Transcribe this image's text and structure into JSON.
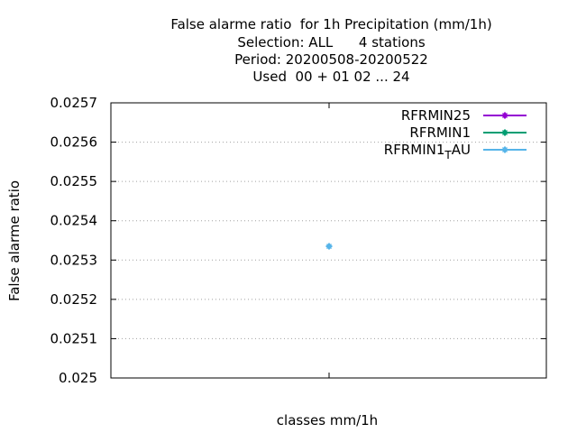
{
  "chart_data": {
    "type": "scatter",
    "title_lines": [
      "False alarme ratio  for 1h Precipitation (mm/1h)",
      "Selection: ALL      4 stations",
      "Period: 20200508-20200522",
      "Used  00 + 01 02 ... 24"
    ],
    "xlabel": "classes mm/1h",
    "ylabel": "False alarme ratio",
    "ylim": [
      0.025,
      0.0257
    ],
    "yticks": [
      "0.025",
      "0.0251",
      "0.0252",
      "0.0253",
      "0.0254",
      "0.0255",
      "0.0256",
      "0.0257"
    ],
    "grid": true,
    "legend_position": "top-right",
    "series": [
      {
        "name": "RFRMIN25",
        "color": "#9400d3",
        "points": []
      },
      {
        "name": "RFRMIN1",
        "color": "#009e73",
        "points": []
      },
      {
        "name": "RFRMIN1_TAU",
        "legend_main": "RFRMIN1",
        "legend_sub": "T",
        "legend_tail": "AU",
        "color": "#56b4e9",
        "points": [
          {
            "x": 0,
            "y": 0.025335
          }
        ]
      }
    ]
  }
}
